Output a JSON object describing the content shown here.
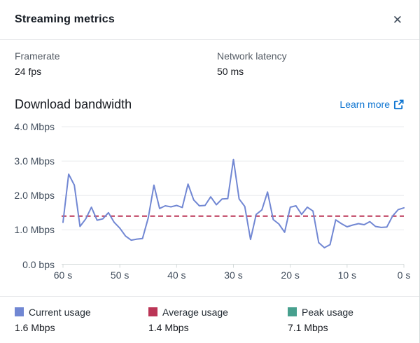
{
  "panel": {
    "title": "Streaming metrics",
    "close_icon": "✕"
  },
  "metrics": [
    {
      "label": "Framerate",
      "value": "24 fps"
    },
    {
      "label": "Network latency",
      "value": "50 ms"
    }
  ],
  "section": {
    "title": "Download bandwidth",
    "learn_more_label": "Learn more"
  },
  "chart_data": {
    "type": "line",
    "title": "Download bandwidth",
    "y_ticks": [
      "4.0 Mbps",
      "3.0 Mbps",
      "2.0 Mbps",
      "1.0 Mbps",
      "0.0 bps"
    ],
    "x_ticks": [
      "60 s",
      "50 s",
      "40 s",
      "30 s",
      "20 s",
      "10 s",
      "0 s"
    ],
    "ylim": [
      0,
      4
    ],
    "grid": true,
    "legend_position": "bottom",
    "x_seconds": [
      60,
      59,
      58,
      57,
      56,
      55,
      54,
      53,
      52,
      51,
      50,
      49,
      48,
      47,
      46,
      45,
      44,
      43,
      42,
      41,
      40,
      39,
      38,
      37,
      36,
      35,
      34,
      33,
      32,
      31,
      30,
      29,
      28,
      27,
      26,
      25,
      24,
      23,
      22,
      21,
      20,
      19,
      18,
      17,
      16,
      15,
      14,
      13,
      12,
      11,
      10,
      9,
      8,
      7,
      6,
      5,
      4,
      3,
      2,
      1,
      0
    ],
    "series": [
      {
        "name": "Current usage",
        "style": "solid",
        "color": "#7187d3",
        "values": [
          1.22,
          2.62,
          2.3,
          1.1,
          1.32,
          1.66,
          1.28,
          1.32,
          1.5,
          1.22,
          1.05,
          0.82,
          0.7,
          0.73,
          0.75,
          1.35,
          2.3,
          1.62,
          1.7,
          1.67,
          1.71,
          1.65,
          2.33,
          1.87,
          1.7,
          1.71,
          1.96,
          1.73,
          1.9,
          1.91,
          3.05,
          1.9,
          1.68,
          0.72,
          1.45,
          1.58,
          2.1,
          1.3,
          1.17,
          0.93,
          1.66,
          1.7,
          1.45,
          1.66,
          1.55,
          0.63,
          0.48,
          0.57,
          1.29,
          1.18,
          1.09,
          1.14,
          1.18,
          1.15,
          1.24,
          1.1,
          1.07,
          1.08,
          1.4,
          1.59,
          1.64
        ]
      },
      {
        "name": "Average usage",
        "style": "dashed",
        "color": "#bb3556",
        "constant_value": 1.4
      }
    ]
  },
  "legend": [
    {
      "label": "Current usage",
      "value": "1.6 Mbps",
      "color": "#7187d3"
    },
    {
      "label": "Average usage",
      "value": "1.4 Mbps",
      "color": "#bb3556"
    },
    {
      "label": "Peak usage",
      "value": "7.1 Mbps",
      "color": "#47a08e"
    }
  ],
  "colors": {
    "link": "#0d74d1",
    "gridline": "#e9ebed",
    "axis": "#d5dbdb"
  }
}
